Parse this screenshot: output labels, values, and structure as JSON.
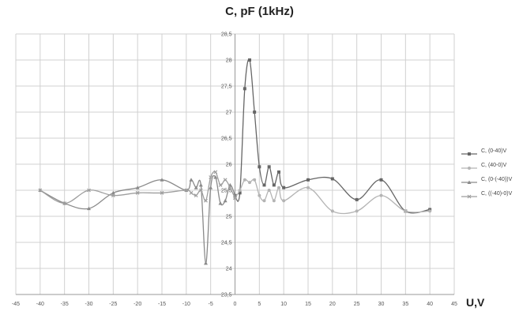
{
  "chart_data": {
    "type": "line",
    "title": "C, pF (1kHz)",
    "xlabel": "U,V",
    "ylabel": "",
    "xlim": [
      -45,
      45
    ],
    "ylim": [
      23.5,
      28.5
    ],
    "x_ticks": [
      "-45",
      "-40",
      "-35",
      "-30",
      "-25",
      "-20",
      "-15",
      "-10",
      "-5",
      "0",
      "5",
      "10",
      "15",
      "20",
      "25",
      "30",
      "35",
      "40",
      "45"
    ],
    "y_ticks": [
      "23,5",
      "24",
      "24,5",
      "25",
      "25,5",
      "26",
      "26,5",
      "27",
      "27,5",
      "28",
      "28,5"
    ],
    "grid": true,
    "legend_position": "right",
    "series": [
      {
        "name": "C, (0-40)V",
        "color": "#666666",
        "marker": "square",
        "x": [
          0,
          1,
          2,
          3,
          4,
          5,
          6,
          7,
          8,
          9,
          10,
          15,
          20,
          25,
          30,
          35,
          40
        ],
        "y": [
          25.4,
          25.45,
          27.45,
          28.0,
          27.0,
          25.95,
          25.6,
          25.95,
          25.6,
          25.85,
          25.55,
          25.7,
          25.72,
          25.32,
          25.7,
          25.1,
          25.13
        ]
      },
      {
        "name": "C, (40-0)V",
        "color": "#b4b4b4",
        "marker": "circle",
        "x": [
          40,
          35,
          30,
          25,
          20,
          15,
          10,
          9,
          8,
          7,
          6,
          5,
          4,
          3,
          2,
          1,
          0
        ],
        "y": [
          25.1,
          25.1,
          25.4,
          25.1,
          25.1,
          25.55,
          25.3,
          25.55,
          25.3,
          25.5,
          25.3,
          25.4,
          25.7,
          25.65,
          25.7,
          25.5,
          25.35
        ]
      },
      {
        "name": "C, (0-(-40))V",
        "color": "#8a8a8a",
        "marker": "triangle",
        "x": [
          0,
          -1,
          -2,
          -3,
          -4,
          -5,
          -6,
          -7,
          -8,
          -9,
          -10,
          -15,
          -20,
          -25,
          -30,
          -35,
          -40
        ],
        "y": [
          25.4,
          25.6,
          25.3,
          25.25,
          25.75,
          25.55,
          24.1,
          25.6,
          25.55,
          25.7,
          25.5,
          25.7,
          25.55,
          25.45,
          25.15,
          25.25,
          25.5
        ]
      },
      {
        "name": "C, ((-40)-0)V",
        "color": "#9e9e9e",
        "marker": "x",
        "x": [
          -40,
          -35,
          -30,
          -25,
          -20,
          -15,
          -10,
          -9,
          -8,
          -7,
          -6,
          -5,
          -4,
          -3,
          -2,
          -1,
          0
        ],
        "y": [
          25.5,
          25.25,
          25.5,
          25.4,
          25.45,
          25.45,
          25.5,
          25.45,
          25.4,
          25.5,
          25.3,
          25.75,
          25.85,
          25.6,
          25.7,
          25.55,
          25.35
        ]
      }
    ]
  }
}
